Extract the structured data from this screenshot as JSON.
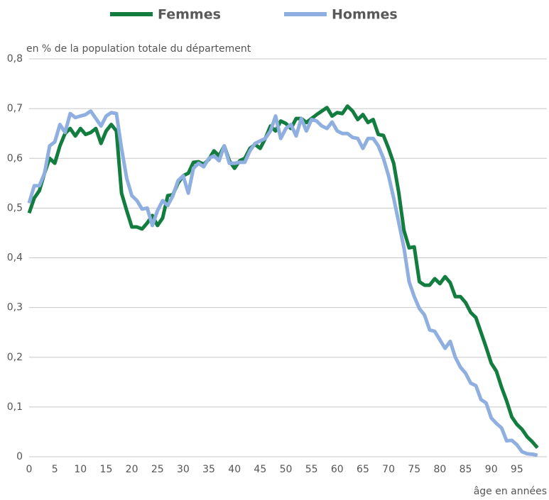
{
  "chart_data": {
    "type": "line",
    "y_axis_label": "en % de la population totale du département",
    "x_axis_label": "âge en années",
    "x": [
      0,
      1,
      2,
      3,
      4,
      5,
      6,
      7,
      8,
      9,
      10,
      11,
      12,
      13,
      14,
      15,
      16,
      17,
      18,
      19,
      20,
      21,
      22,
      23,
      24,
      25,
      26,
      27,
      28,
      29,
      30,
      31,
      32,
      33,
      34,
      35,
      36,
      37,
      38,
      39,
      40,
      41,
      42,
      43,
      44,
      45,
      46,
      47,
      48,
      49,
      50,
      51,
      52,
      53,
      54,
      55,
      56,
      57,
      58,
      59,
      60,
      61,
      62,
      63,
      64,
      65,
      66,
      67,
      68,
      69,
      70,
      71,
      72,
      73,
      74,
      75,
      76,
      77,
      78,
      79,
      80,
      81,
      82,
      83,
      84,
      85,
      86,
      87,
      88,
      89,
      90,
      91,
      92,
      93,
      94,
      95,
      96,
      97,
      98,
      99
    ],
    "series": [
      {
        "name": "Femmes",
        "color": "#137d3f",
        "values": [
          0.49,
          0.52,
          0.535,
          0.57,
          0.6,
          0.59,
          0.625,
          0.65,
          0.66,
          0.645,
          0.66,
          0.648,
          0.652,
          0.66,
          0.63,
          0.655,
          0.668,
          0.655,
          0.53,
          0.495,
          0.462,
          0.462,
          0.458,
          0.47,
          0.485,
          0.465,
          0.48,
          0.525,
          0.527,
          0.55,
          0.565,
          0.57,
          0.592,
          0.593,
          0.588,
          0.598,
          0.615,
          0.605,
          0.625,
          0.595,
          0.58,
          0.595,
          0.6,
          0.62,
          0.628,
          0.62,
          0.64,
          0.665,
          0.655,
          0.675,
          0.67,
          0.66,
          0.68,
          0.68,
          0.672,
          0.68,
          0.688,
          0.695,
          0.702,
          0.685,
          0.692,
          0.69,
          0.705,
          0.695,
          0.678,
          0.688,
          0.672,
          0.678,
          0.648,
          0.646,
          0.62,
          0.59,
          0.53,
          0.455,
          0.42,
          0.422,
          0.352,
          0.345,
          0.345,
          0.358,
          0.348,
          0.362,
          0.35,
          0.322,
          0.322,
          0.31,
          0.29,
          0.28,
          0.25,
          0.22,
          0.188,
          0.172,
          0.14,
          0.112,
          0.08,
          0.065,
          0.055,
          0.04,
          0.03,
          0.018
        ]
      },
      {
        "name": "Hommes",
        "color": "#8fafe0",
        "values": [
          0.51,
          0.545,
          0.545,
          0.57,
          0.625,
          0.633,
          0.668,
          0.652,
          0.69,
          0.682,
          0.685,
          0.688,
          0.695,
          0.68,
          0.665,
          0.685,
          0.692,
          0.69,
          0.62,
          0.56,
          0.525,
          0.515,
          0.498,
          0.5,
          0.465,
          0.495,
          0.515,
          0.505,
          0.525,
          0.555,
          0.565,
          0.53,
          0.58,
          0.59,
          0.583,
          0.6,
          0.605,
          0.595,
          0.625,
          0.59,
          0.59,
          0.592,
          0.592,
          0.615,
          0.63,
          0.635,
          0.64,
          0.655,
          0.685,
          0.64,
          0.66,
          0.668,
          0.645,
          0.68,
          0.655,
          0.678,
          0.675,
          0.665,
          0.66,
          0.673,
          0.655,
          0.65,
          0.65,
          0.642,
          0.64,
          0.62,
          0.64,
          0.64,
          0.625,
          0.6,
          0.565,
          0.52,
          0.47,
          0.42,
          0.352,
          0.322,
          0.298,
          0.285,
          0.255,
          0.252,
          0.235,
          0.218,
          0.232,
          0.2,
          0.18,
          0.168,
          0.148,
          0.143,
          0.115,
          0.108,
          0.078,
          0.067,
          0.058,
          0.032,
          0.033,
          0.024,
          0.01,
          0.006,
          0.005,
          0.003
        ]
      }
    ],
    "xlim": [
      0,
      100
    ],
    "xticks": [
      0,
      5,
      10,
      15,
      20,
      25,
      30,
      35,
      40,
      45,
      50,
      55,
      60,
      65,
      70,
      75,
      80,
      85,
      90,
      95
    ],
    "ylim": [
      0,
      0.8
    ],
    "yticks": [
      0,
      {
        "value": 0.1,
        "label": "0,1"
      },
      {
        "value": 0.2,
        "label": "0,2"
      },
      {
        "value": 0.3,
        "label": "0,3"
      },
      {
        "value": 0.4,
        "label": "0,4"
      },
      {
        "value": 0.5,
        "label": "0,5"
      },
      {
        "value": 0.6,
        "label": "0,6"
      },
      {
        "value": 0.7,
        "label": "0,7"
      },
      {
        "value": 0.8,
        "label": "0,8"
      }
    ],
    "grid": true,
    "legend": "top"
  }
}
